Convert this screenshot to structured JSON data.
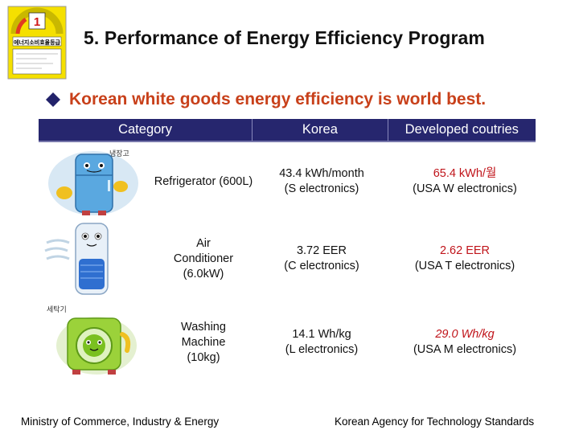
{
  "page": {
    "title": "5. Performance of Energy Efficiency Program",
    "subtitle": "Korean white goods energy efficiency is world best."
  },
  "label_icon": {
    "grade": "1",
    "korean_text": "에너지소비효율등급"
  },
  "table": {
    "headers": [
      "Category",
      "Korea",
      "Developed coutries"
    ],
    "rows": [
      {
        "image_icon": "refrigerator-icon",
        "image_caption": "냉장고",
        "category": "Refrigerator (600L)",
        "korea": [
          "43.4 kWh/month",
          "(S electronics)"
        ],
        "developed": [
          "65.4 kWh/월",
          "(USA W electronics)"
        ]
      },
      {
        "image_icon": "air-conditioner-icon",
        "category": "Air Conditioner (6.0kW)",
        "korea": [
          "3.72 EER",
          "(C electronics)"
        ],
        "developed": [
          "2.62 EER",
          "(USA T electronics)"
        ]
      },
      {
        "image_icon": "washing-machine-icon",
        "image_caption": "세탁기",
        "category": "Washing Machine (10kg)",
        "korea": [
          "14.1 Wh/kg",
          "(L electronics)"
        ],
        "developed": [
          "29.0 Wh/kg",
          "(USA M electronics)"
        ]
      }
    ]
  },
  "footer": {
    "left": "Ministry of Commerce, Industry & Energy",
    "right": "Korean Agency for Technology Standards"
  },
  "colors": {
    "header_bg": "#26266e",
    "subtitle": "#c8401a",
    "highlight": "#c0141a",
    "label_yellow": "#f5e000"
  }
}
